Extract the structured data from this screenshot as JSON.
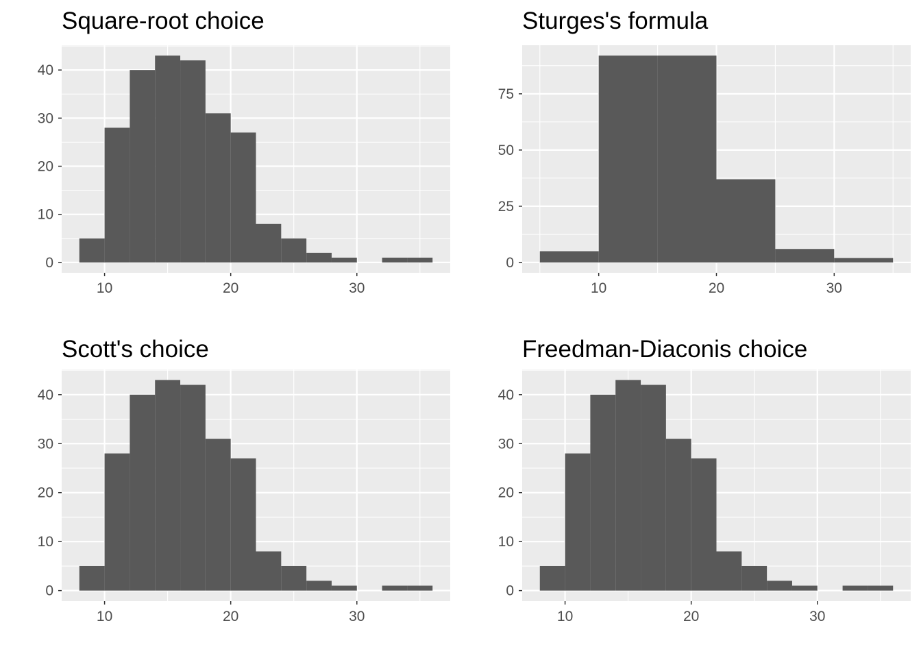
{
  "chart_data": [
    {
      "type": "bar",
      "title": "Square-root choice",
      "xlabel": "",
      "ylabel": "",
      "bin_width": 2,
      "bins": [
        {
          "x0": 8,
          "x1": 10,
          "count": 5
        },
        {
          "x0": 10,
          "x1": 12,
          "count": 28
        },
        {
          "x0": 12,
          "x1": 14,
          "count": 40
        },
        {
          "x0": 14,
          "x1": 16,
          "count": 43
        },
        {
          "x0": 16,
          "x1": 18,
          "count": 42
        },
        {
          "x0": 18,
          "x1": 20,
          "count": 31
        },
        {
          "x0": 20,
          "x1": 22,
          "count": 27
        },
        {
          "x0": 22,
          "x1": 24,
          "count": 8
        },
        {
          "x0": 24,
          "x1": 26,
          "count": 5
        },
        {
          "x0": 26,
          "x1": 28,
          "count": 2
        },
        {
          "x0": 28,
          "x1": 30,
          "count": 1
        },
        {
          "x0": 30,
          "x1": 32,
          "count": 0
        },
        {
          "x0": 32,
          "x1": 34,
          "count": 1
        },
        {
          "x0": 34,
          "x1": 36,
          "count": 1
        }
      ],
      "xlim": [
        6.6,
        37.4
      ],
      "ylim": [
        -2.15,
        45.15
      ],
      "x_ticks": [
        10,
        20,
        30
      ],
      "y_ticks": [
        0,
        10,
        20,
        30,
        40
      ],
      "grid": true,
      "legend": "none"
    },
    {
      "type": "bar",
      "title": "Sturges's formula",
      "xlabel": "",
      "ylabel": "",
      "bin_width": 5,
      "bins": [
        {
          "x0": 5,
          "x1": 10,
          "count": 5
        },
        {
          "x0": 10,
          "x1": 15,
          "count": 92
        },
        {
          "x0": 15,
          "x1": 20,
          "count": 92
        },
        {
          "x0": 20,
          "x1": 25,
          "count": 37
        },
        {
          "x0": 25,
          "x1": 30,
          "count": 6
        },
        {
          "x0": 30,
          "x1": 35,
          "count": 2
        }
      ],
      "xlim": [
        3.5,
        36.5
      ],
      "ylim": [
        -4.6,
        96.6
      ],
      "x_ticks": [
        10,
        20,
        30
      ],
      "y_ticks": [
        0,
        25,
        50,
        75
      ],
      "grid": true,
      "legend": "none"
    },
    {
      "type": "bar",
      "title": "Scott's choice",
      "xlabel": "",
      "ylabel": "",
      "bin_width": 2,
      "bins": [
        {
          "x0": 8,
          "x1": 10,
          "count": 5
        },
        {
          "x0": 10,
          "x1": 12,
          "count": 28
        },
        {
          "x0": 12,
          "x1": 14,
          "count": 40
        },
        {
          "x0": 14,
          "x1": 16,
          "count": 43
        },
        {
          "x0": 16,
          "x1": 18,
          "count": 42
        },
        {
          "x0": 18,
          "x1": 20,
          "count": 31
        },
        {
          "x0": 20,
          "x1": 22,
          "count": 27
        },
        {
          "x0": 22,
          "x1": 24,
          "count": 8
        },
        {
          "x0": 24,
          "x1": 26,
          "count": 5
        },
        {
          "x0": 26,
          "x1": 28,
          "count": 2
        },
        {
          "x0": 28,
          "x1": 30,
          "count": 1
        },
        {
          "x0": 30,
          "x1": 32,
          "count": 0
        },
        {
          "x0": 32,
          "x1": 34,
          "count": 1
        },
        {
          "x0": 34,
          "x1": 36,
          "count": 1
        }
      ],
      "xlim": [
        6.6,
        37.4
      ],
      "ylim": [
        -2.15,
        45.15
      ],
      "x_ticks": [
        10,
        20,
        30
      ],
      "y_ticks": [
        0,
        10,
        20,
        30,
        40
      ],
      "grid": true,
      "legend": "none"
    },
    {
      "type": "bar",
      "title": "Freedman-Diaconis choice",
      "xlabel": "",
      "ylabel": "",
      "bin_width": 2,
      "bins": [
        {
          "x0": 8,
          "x1": 10,
          "count": 5
        },
        {
          "x0": 10,
          "x1": 12,
          "count": 28
        },
        {
          "x0": 12,
          "x1": 14,
          "count": 40
        },
        {
          "x0": 14,
          "x1": 16,
          "count": 43
        },
        {
          "x0": 16,
          "x1": 18,
          "count": 42
        },
        {
          "x0": 18,
          "x1": 20,
          "count": 31
        },
        {
          "x0": 20,
          "x1": 22,
          "count": 27
        },
        {
          "x0": 22,
          "x1": 24,
          "count": 8
        },
        {
          "x0": 24,
          "x1": 26,
          "count": 5
        },
        {
          "x0": 26,
          "x1": 28,
          "count": 2
        },
        {
          "x0": 28,
          "x1": 30,
          "count": 1
        },
        {
          "x0": 30,
          "x1": 32,
          "count": 0
        },
        {
          "x0": 32,
          "x1": 34,
          "count": 1
        },
        {
          "x0": 34,
          "x1": 36,
          "count": 1
        }
      ],
      "xlim": [
        6.6,
        37.4
      ],
      "ylim": [
        -2.15,
        45.15
      ],
      "x_ticks": [
        10,
        20,
        30
      ],
      "y_ticks": [
        0,
        10,
        20,
        30,
        40
      ],
      "grid": true,
      "legend": "none"
    }
  ],
  "colors": {
    "panel_background": "#ebebeb",
    "grid_major": "#ffffff",
    "grid_minor": "#f7f7f7",
    "bar_fill": "#595959",
    "tick_label": "#4d4d4d",
    "tick_mark": "#333333",
    "title": "#000000"
  }
}
